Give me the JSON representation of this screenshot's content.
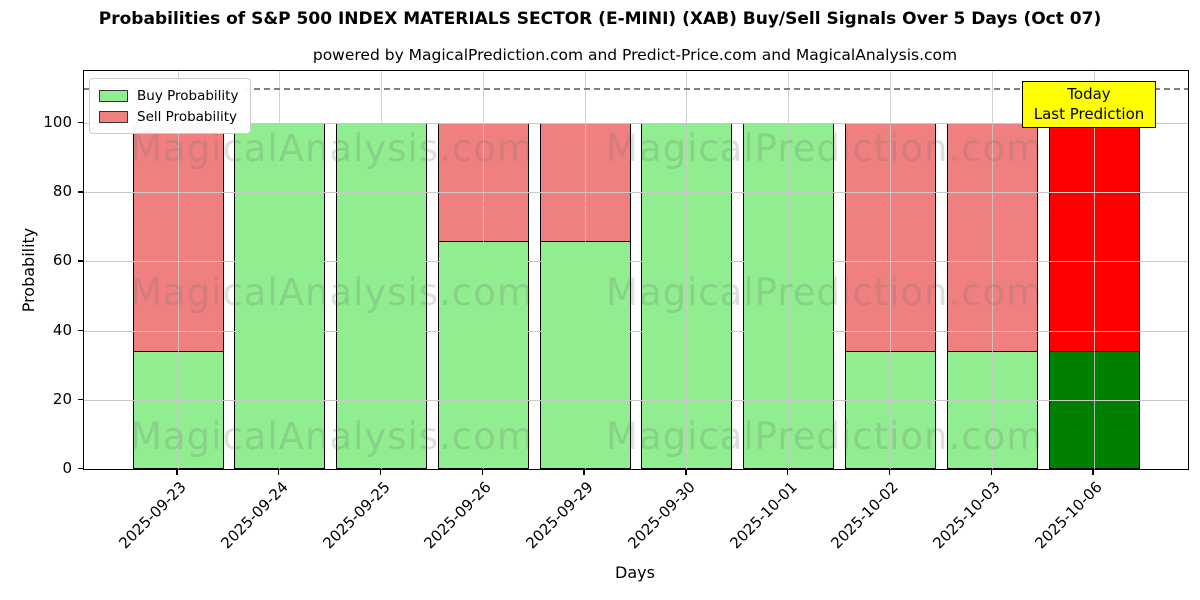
{
  "chart_data": {
    "type": "bar",
    "stacked": true,
    "title": "Probabilities of S&P 500 INDEX MATERIALS SECTOR (E-MINI) (XAB) Buy/Sell Signals Over 5 Days (Oct 07)",
    "subtitle": "powered by MagicalPrediction.com and Predict-Price.com and MagicalAnalysis.com",
    "xlabel": "Days",
    "ylabel": "Probability",
    "ylim": [
      0,
      115
    ],
    "yticks": [
      0,
      20,
      40,
      60,
      80,
      100
    ],
    "grid": true,
    "categories": [
      "2025-09-23",
      "2025-09-24",
      "2025-09-25",
      "2025-09-26",
      "2025-09-29",
      "2025-09-30",
      "2025-10-01",
      "2025-10-02",
      "2025-10-03",
      "2025-10-06"
    ],
    "series": [
      {
        "name": "Buy Probability",
        "color": "#90EE90",
        "values": [
          34,
          100,
          100,
          66,
          66,
          100,
          100,
          34,
          34,
          34
        ]
      },
      {
        "name": "Sell Probability",
        "color": "#F08080",
        "values": [
          66,
          0,
          0,
          34,
          34,
          0,
          0,
          66,
          66,
          66
        ]
      }
    ],
    "today": {
      "index": 9,
      "buy_color": "#008000",
      "sell_color": "#FF0000"
    },
    "threshold_line": {
      "y": 110,
      "style": "dashed",
      "color": "#7f7f7f"
    },
    "annotation": {
      "line1": "Today",
      "line2": "Last Prediction",
      "bg_color": "#FFFF00",
      "border_color": "#000000"
    },
    "watermarks": {
      "left": "MagicalAnalysis.com",
      "right": "MagicalPrediction.com"
    },
    "legend_position": "upper-left"
  }
}
